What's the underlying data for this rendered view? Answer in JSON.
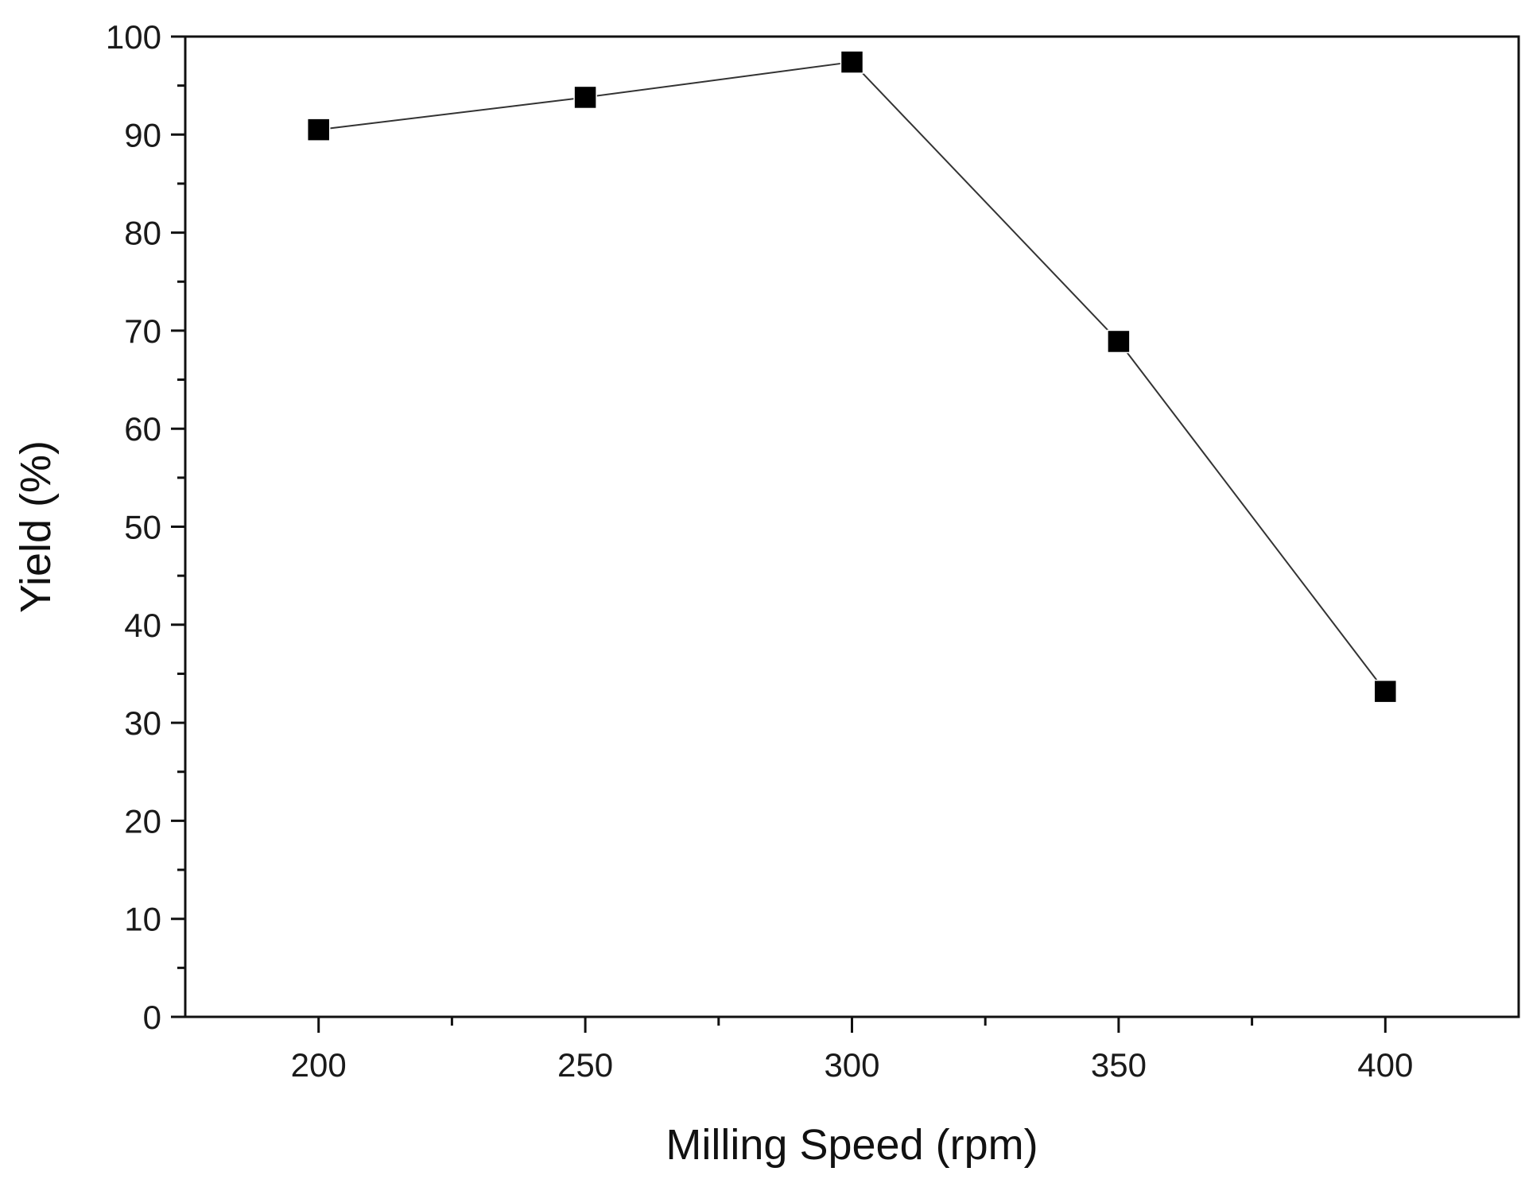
{
  "chart_data": {
    "type": "line",
    "title": "",
    "xlabel": "Milling Speed (rpm)",
    "ylabel": "Yield (%)",
    "xlim": [
      175,
      425
    ],
    "ylim": [
      0,
      100
    ],
    "x_ticks": [
      200,
      250,
      300,
      350,
      400
    ],
    "x_minor_ticks": [
      225,
      275,
      325,
      375
    ],
    "y_ticks": [
      0,
      10,
      20,
      30,
      40,
      50,
      60,
      70,
      80,
      90,
      100
    ],
    "series": [
      {
        "name": "Yield",
        "x": [
          200,
          250,
          300,
          350,
          400
        ],
        "values": [
          90.5,
          93.8,
          97.4,
          68.9,
          33.2
        ],
        "marker": "square",
        "color": "#000000",
        "line_color": "#333333"
      }
    ],
    "grid": false,
    "legend": "none"
  }
}
